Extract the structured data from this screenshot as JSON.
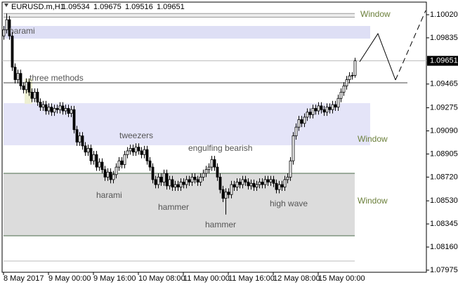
{
  "chart_data": {
    "type": "candlestick",
    "title": "EURUSD.m,H1",
    "header_ohlc": [
      1.09534,
      1.09675,
      1.09516,
      1.09651
    ],
    "last_price": 1.09651,
    "ylim": [
      1.07958,
      1.10121
    ],
    "yticks": [
      {
        "value": 1.1002,
        "label": "1.10020"
      },
      1.09835,
      1.09465,
      1.09275,
      {
        "value": 1.0909,
        "label": "1.09090"
      },
      1.08905,
      {
        "value": 1.0872,
        "label": "1.08720"
      },
      {
        "value": 1.0853,
        "label": "1.08530"
      },
      1.08345,
      {
        "value": 1.0816,
        "label": "1.08160"
      },
      1.07975
    ],
    "xticks": [
      {
        "value": 0,
        "label": "8 May 2017"
      },
      {
        "value": 16,
        "label": "9 May 00:00"
      },
      {
        "value": 32,
        "label": "9 May 16:00"
      },
      {
        "value": 48,
        "label": "10 May 08:00"
      },
      {
        "value": 64,
        "label": "11 May 00:00"
      },
      {
        "value": 80,
        "label": "11 May 16:00"
      },
      {
        "value": 96,
        "label": "12 May 08:00"
      },
      {
        "value": 112,
        "label": "15 May 00:00"
      }
    ],
    "open": [
      1.0985,
      1.099,
      1.0998,
      1.0985,
      1.096,
      1.095,
      1.0955,
      1.0945,
      1.0942,
      1.0948,
      1.094,
      1.0935,
      1.094,
      1.0932,
      1.0928,
      1.093,
      1.0925,
      1.0928,
      1.0924,
      1.0927,
      1.0926,
      1.0929,
      1.0925,
      1.0927,
      1.0923,
      1.0926,
      1.091,
      1.09,
      1.0905,
      1.0897,
      1.0892,
      1.0895,
      1.0885,
      1.089,
      1.088,
      1.0884,
      1.0878,
      1.0872,
      1.0876,
      1.087,
      1.0874,
      1.088,
      1.0885,
      1.0882,
      1.089,
      1.0893,
      1.0895,
      1.0892,
      1.0896,
      1.0893,
      1.089,
      1.0894,
      1.0885,
      1.088,
      1.087,
      1.0866,
      1.0872,
      1.0868,
      1.0875,
      1.0865,
      1.087,
      1.0864,
      1.0866,
      1.0864,
      1.0868,
      1.0866,
      1.087,
      1.0868,
      1.0872,
      1.087,
      1.0868,
      1.0872,
      1.0875,
      1.0878,
      1.088,
      1.0886,
      1.088,
      1.0872,
      1.0862,
      1.0855,
      1.086,
      1.0858,
      1.0866,
      1.0864,
      1.0868,
      1.0866,
      1.087,
      1.0868,
      1.0865,
      1.0867,
      1.0864,
      1.0866,
      1.0868,
      1.0866,
      1.087,
      1.0868,
      1.087,
      1.0867,
      1.0862,
      1.0866,
      1.0864,
      1.087,
      1.0872,
      1.0885,
      1.0905,
      1.0912,
      1.0918,
      1.0915,
      1.092,
      1.0924,
      1.0922,
      1.0927,
      1.0925,
      1.0929,
      1.0926,
      1.0924,
      1.0928,
      1.0926,
      1.093,
      1.0928,
      1.0935,
      1.094,
      1.0945,
      1.095,
      1.0953,
      1.09534
    ],
    "high": [
      1.0993,
      1.1003,
      1.1001,
      1.0988,
      1.0963,
      1.0958,
      1.0958,
      1.0948,
      1.0951,
      1.0951,
      1.0943,
      1.0943,
      1.0943,
      1.0935,
      1.0933,
      1.0933,
      1.0931,
      1.0931,
      1.093,
      1.093,
      1.0932,
      1.0932,
      1.093,
      1.093,
      1.0929,
      1.0929,
      1.0913,
      1.0908,
      1.0908,
      1.09,
      1.0898,
      1.0898,
      1.0893,
      1.0893,
      1.0887,
      1.0887,
      1.0881,
      1.0879,
      1.0879,
      1.0877,
      1.0883,
      1.0888,
      1.0888,
      1.0893,
      1.0896,
      1.0898,
      1.0898,
      1.0899,
      1.0899,
      1.0896,
      1.0897,
      1.0897,
      1.0888,
      1.0883,
      1.0873,
      1.0875,
      1.0875,
      1.0878,
      1.0878,
      1.0873,
      1.0873,
      1.0869,
      1.0869,
      1.0871,
      1.0871,
      1.0873,
      1.0873,
      1.0875,
      1.0875,
      1.0873,
      1.0875,
      1.0878,
      1.0881,
      1.0883,
      1.0889,
      1.0889,
      1.0883,
      1.0875,
      1.0865,
      1.0863,
      1.0863,
      1.0869,
      1.0869,
      1.0871,
      1.0871,
      1.0873,
      1.0873,
      1.0871,
      1.087,
      1.087,
      1.0869,
      1.0871,
      1.0871,
      1.0873,
      1.0873,
      1.0873,
      1.0873,
      1.087,
      1.0869,
      1.0869,
      1.0873,
      1.0875,
      1.0888,
      1.0908,
      1.0915,
      1.0921,
      1.0921,
      1.0923,
      1.0927,
      1.0927,
      1.093,
      1.093,
      1.0932,
      1.0932,
      1.0929,
      1.0931,
      1.0931,
      1.0933,
      1.0933,
      1.0938,
      1.0943,
      1.0948,
      1.0953,
      1.0956,
      1.0956,
      1.09675
    ],
    "low": [
      1.0982,
      1.0987,
      1.0982,
      1.0957,
      1.0947,
      1.0947,
      1.0942,
      1.0939,
      1.0939,
      1.0937,
      1.0932,
      1.0932,
      1.0929,
      1.0925,
      1.0925,
      1.0922,
      1.0922,
      1.0921,
      1.0921,
      1.0923,
      1.0923,
      1.0922,
      1.0922,
      1.092,
      1.092,
      1.0907,
      1.0897,
      1.0897,
      1.0894,
      1.0889,
      1.0889,
      1.0882,
      1.0882,
      1.0877,
      1.0877,
      1.0875,
      1.0869,
      1.0869,
      1.0867,
      1.0867,
      1.0871,
      1.0877,
      1.0879,
      1.0879,
      1.0887,
      1.089,
      1.0889,
      1.0889,
      1.089,
      1.0887,
      1.0887,
      1.0882,
      1.0877,
      1.0867,
      1.0863,
      1.0863,
      1.0865,
      1.0865,
      1.0862,
      1.0862,
      1.0861,
      1.0861,
      1.0861,
      1.0861,
      1.0863,
      1.0863,
      1.0865,
      1.0865,
      1.0867,
      1.0865,
      1.0865,
      1.0869,
      1.0872,
      1.0875,
      1.0877,
      1.0877,
      1.0869,
      1.0859,
      1.0852,
      1.0842,
      1.0855,
      1.0855,
      1.0861,
      1.0861,
      1.0863,
      1.0863,
      1.0865,
      1.0862,
      1.0862,
      1.0861,
      1.0861,
      1.0863,
      1.0863,
      1.0863,
      1.0865,
      1.0865,
      1.0864,
      1.0859,
      1.0859,
      1.0861,
      1.0861,
      1.0867,
      1.0869,
      1.0882,
      1.0902,
      1.0909,
      1.0912,
      1.0912,
      1.0917,
      1.0919,
      1.0919,
      1.0922,
      1.0922,
      1.0923,
      1.0921,
      1.0921,
      1.0923,
      1.0923,
      1.0925,
      1.0925,
      1.0932,
      1.0937,
      1.0942,
      1.0947,
      1.095,
      1.09516
    ],
    "close": [
      1.099,
      1.0998,
      1.0985,
      1.096,
      1.095,
      1.0955,
      1.0945,
      1.0942,
      1.0948,
      1.094,
      1.0935,
      1.094,
      1.0932,
      1.0928,
      1.093,
      1.0925,
      1.0928,
      1.0924,
      1.0927,
      1.0926,
      1.0929,
      1.0925,
      1.0927,
      1.0923,
      1.0926,
      1.091,
      1.09,
      1.0905,
      1.0897,
      1.0892,
      1.0895,
      1.0885,
      1.089,
      1.088,
      1.0884,
      1.0878,
      1.0872,
      1.0876,
      1.087,
      1.0874,
      1.088,
      1.0885,
      1.0882,
      1.089,
      1.0893,
      1.0895,
      1.0892,
      1.0896,
      1.0893,
      1.089,
      1.0894,
      1.0885,
      1.088,
      1.087,
      1.0866,
      1.0872,
      1.0868,
      1.0875,
      1.0865,
      1.087,
      1.0864,
      1.0866,
      1.0864,
      1.0868,
      1.0866,
      1.087,
      1.0868,
      1.0872,
      1.087,
      1.0868,
      1.0872,
      1.0875,
      1.0878,
      1.088,
      1.0886,
      1.088,
      1.0872,
      1.0862,
      1.0855,
      1.086,
      1.0858,
      1.0866,
      1.0864,
      1.0868,
      1.0866,
      1.087,
      1.0868,
      1.0865,
      1.0867,
      1.0864,
      1.0866,
      1.0868,
      1.0866,
      1.087,
      1.0868,
      1.087,
      1.0867,
      1.0862,
      1.0866,
      1.0864,
      1.087,
      1.0872,
      1.0885,
      1.0905,
      1.0912,
      1.0918,
      1.0915,
      1.092,
      1.0924,
      1.0922,
      1.0927,
      1.0925,
      1.0929,
      1.0926,
      1.0924,
      1.0928,
      1.0926,
      1.093,
      1.0928,
      1.0935,
      1.094,
      1.0945,
      1.095,
      1.0953,
      1.09534,
      1.09651
    ],
    "zones": [
      {
        "from": 1.1,
        "to": 1.1003,
        "color": "#ececec"
      },
      {
        "from": 1.09829,
        "to": 1.0993,
        "color": "#dedff5"
      },
      {
        "from": 1.08975,
        "to": 1.09312,
        "color": "#e4e4f8"
      },
      {
        "from": 1.09307,
        "to": 1.09509,
        "color": "#eef0d2"
      },
      {
        "from": 1.0825,
        "to": 1.0875,
        "color": "#dcdcdc"
      }
    ],
    "levels": [
      1.09475,
      1.08048
    ],
    "annotations": [
      "harami",
      "three methods",
      "tweezers",
      "engulfing bearish",
      "harami",
      "hammer",
      "hammer",
      "high wave",
      "Window",
      "Window",
      "Window"
    ]
  }
}
